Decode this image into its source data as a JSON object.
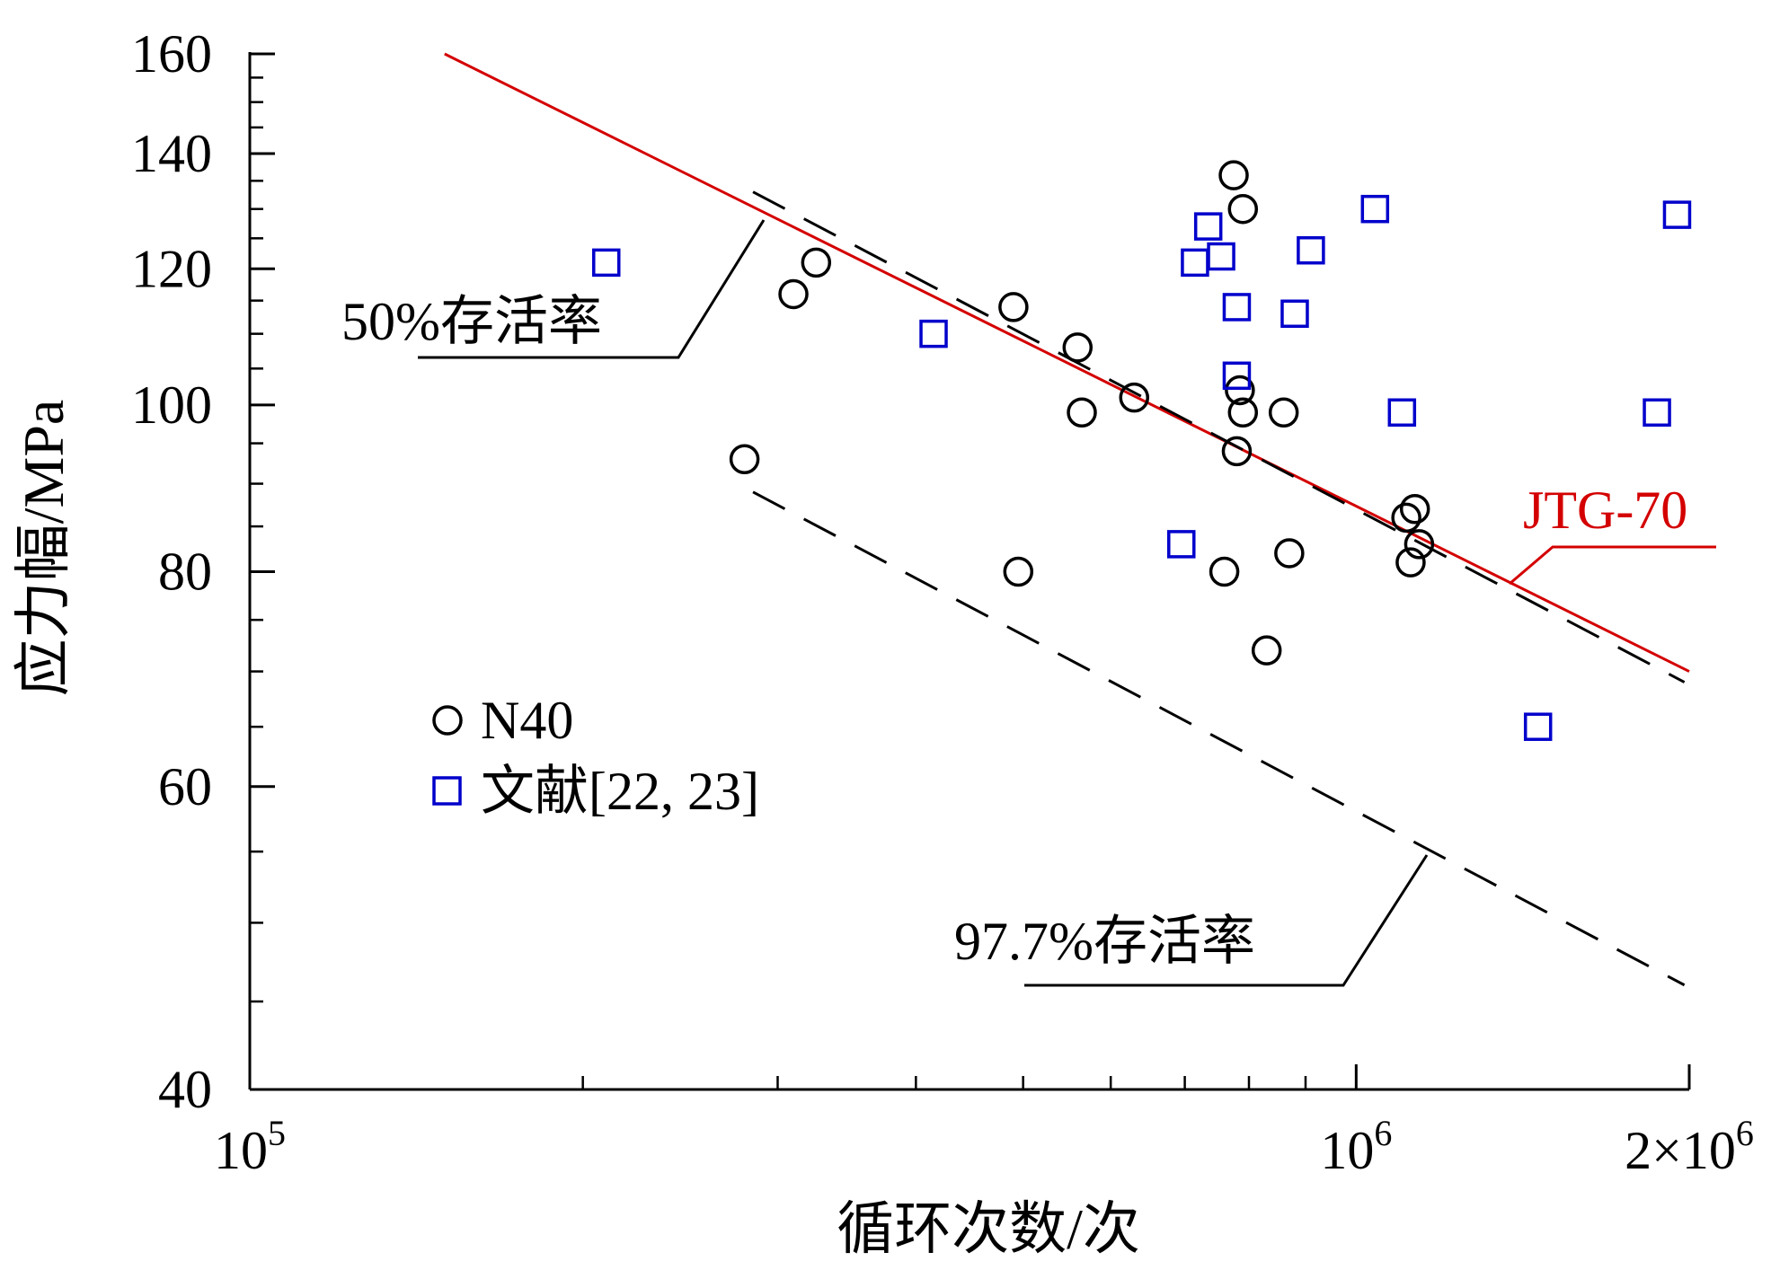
{
  "chart_data": {
    "type": "scatter",
    "x_scale": "log",
    "y_scale": "log",
    "xlim": [
      100000,
      2000000
    ],
    "ylim": [
      40,
      160
    ],
    "xlabel": "循环次数/次",
    "ylabel": "应力幅/MPa",
    "x_ticks": [
      {
        "value": 100000,
        "base": "10",
        "exp": "5"
      },
      {
        "value": 1000000,
        "base": "10",
        "exp": "6"
      },
      {
        "value": 2000000,
        "base": "2×10",
        "exp": "6"
      }
    ],
    "x_minor_ticks": [
      200000,
      300000,
      400000,
      500000,
      600000,
      700000,
      800000,
      900000
    ],
    "y_ticks": [
      {
        "value": 40,
        "label": "40"
      },
      {
        "value": 60,
        "label": "60"
      },
      {
        "value": 80,
        "label": "80"
      },
      {
        "value": 100,
        "label": "100"
      },
      {
        "value": 120,
        "label": "120"
      },
      {
        "value": 140,
        "label": "140"
      },
      {
        "value": 160,
        "label": "160"
      }
    ],
    "y_minor_ticks": [
      45,
      50,
      55,
      65,
      70,
      75,
      85,
      90,
      95,
      105,
      110,
      115,
      125,
      130,
      135,
      145,
      150,
      155
    ],
    "series": [
      {
        "name": "N40",
        "marker": "circle",
        "color": "#000000",
        "points": [
          [
            280000,
            93
          ],
          [
            310000,
            116
          ],
          [
            325000,
            121
          ],
          [
            490000,
            114
          ],
          [
            495000,
            80
          ],
          [
            560000,
            108
          ],
          [
            565000,
            99
          ],
          [
            630000,
            101
          ],
          [
            760000,
            80
          ],
          [
            775000,
            136
          ],
          [
            780000,
            94
          ],
          [
            785000,
            102
          ],
          [
            790000,
            130
          ],
          [
            790000,
            99
          ],
          [
            830000,
            72
          ],
          [
            860000,
            99
          ],
          [
            870000,
            82
          ],
          [
            1110000,
            86
          ],
          [
            1120000,
            81
          ],
          [
            1130000,
            87
          ],
          [
            1140000,
            83
          ]
        ]
      },
      {
        "name": "文献[22, 23]",
        "marker": "square",
        "color": "#0000cc",
        "points": [
          [
            210000,
            121
          ],
          [
            415000,
            110
          ],
          [
            695000,
            83
          ],
          [
            715000,
            121
          ],
          [
            735000,
            127
          ],
          [
            755000,
            122
          ],
          [
            780000,
            114
          ],
          [
            780000,
            104
          ],
          [
            880000,
            113
          ],
          [
            910000,
            123
          ],
          [
            1040000,
            130
          ],
          [
            1100000,
            99
          ],
          [
            1460000,
            65
          ],
          [
            1870000,
            99
          ],
          [
            1950000,
            129
          ]
        ]
      }
    ],
    "lines": [
      {
        "name": "JTG-70",
        "style": "solid",
        "color": "#d40000",
        "points": [
          [
            150000,
            160
          ],
          [
            2000000,
            70
          ]
        ]
      },
      {
        "name": "50%存活率",
        "style": "dashed",
        "color": "#000000",
        "points": [
          [
            285000,
            133
          ],
          [
            1980000,
            69
          ]
        ]
      },
      {
        "name": "97.7%存活率",
        "style": "dashed",
        "color": "#000000",
        "points": [
          [
            285000,
            89
          ],
          [
            1980000,
            46
          ]
        ]
      }
    ],
    "annotations": [
      {
        "text": "50%存活率"
      },
      {
        "text": "97.7%存活率"
      },
      {
        "text": "JTG-70",
        "color": "#d40000"
      }
    ],
    "legend": {
      "position": "left-middle",
      "entries": [
        {
          "label": "N40",
          "marker": "circle",
          "color": "#000000"
        },
        {
          "label": "文献[22, 23]",
          "marker": "square",
          "color": "#0000cc"
        }
      ]
    },
    "grid": false
  }
}
